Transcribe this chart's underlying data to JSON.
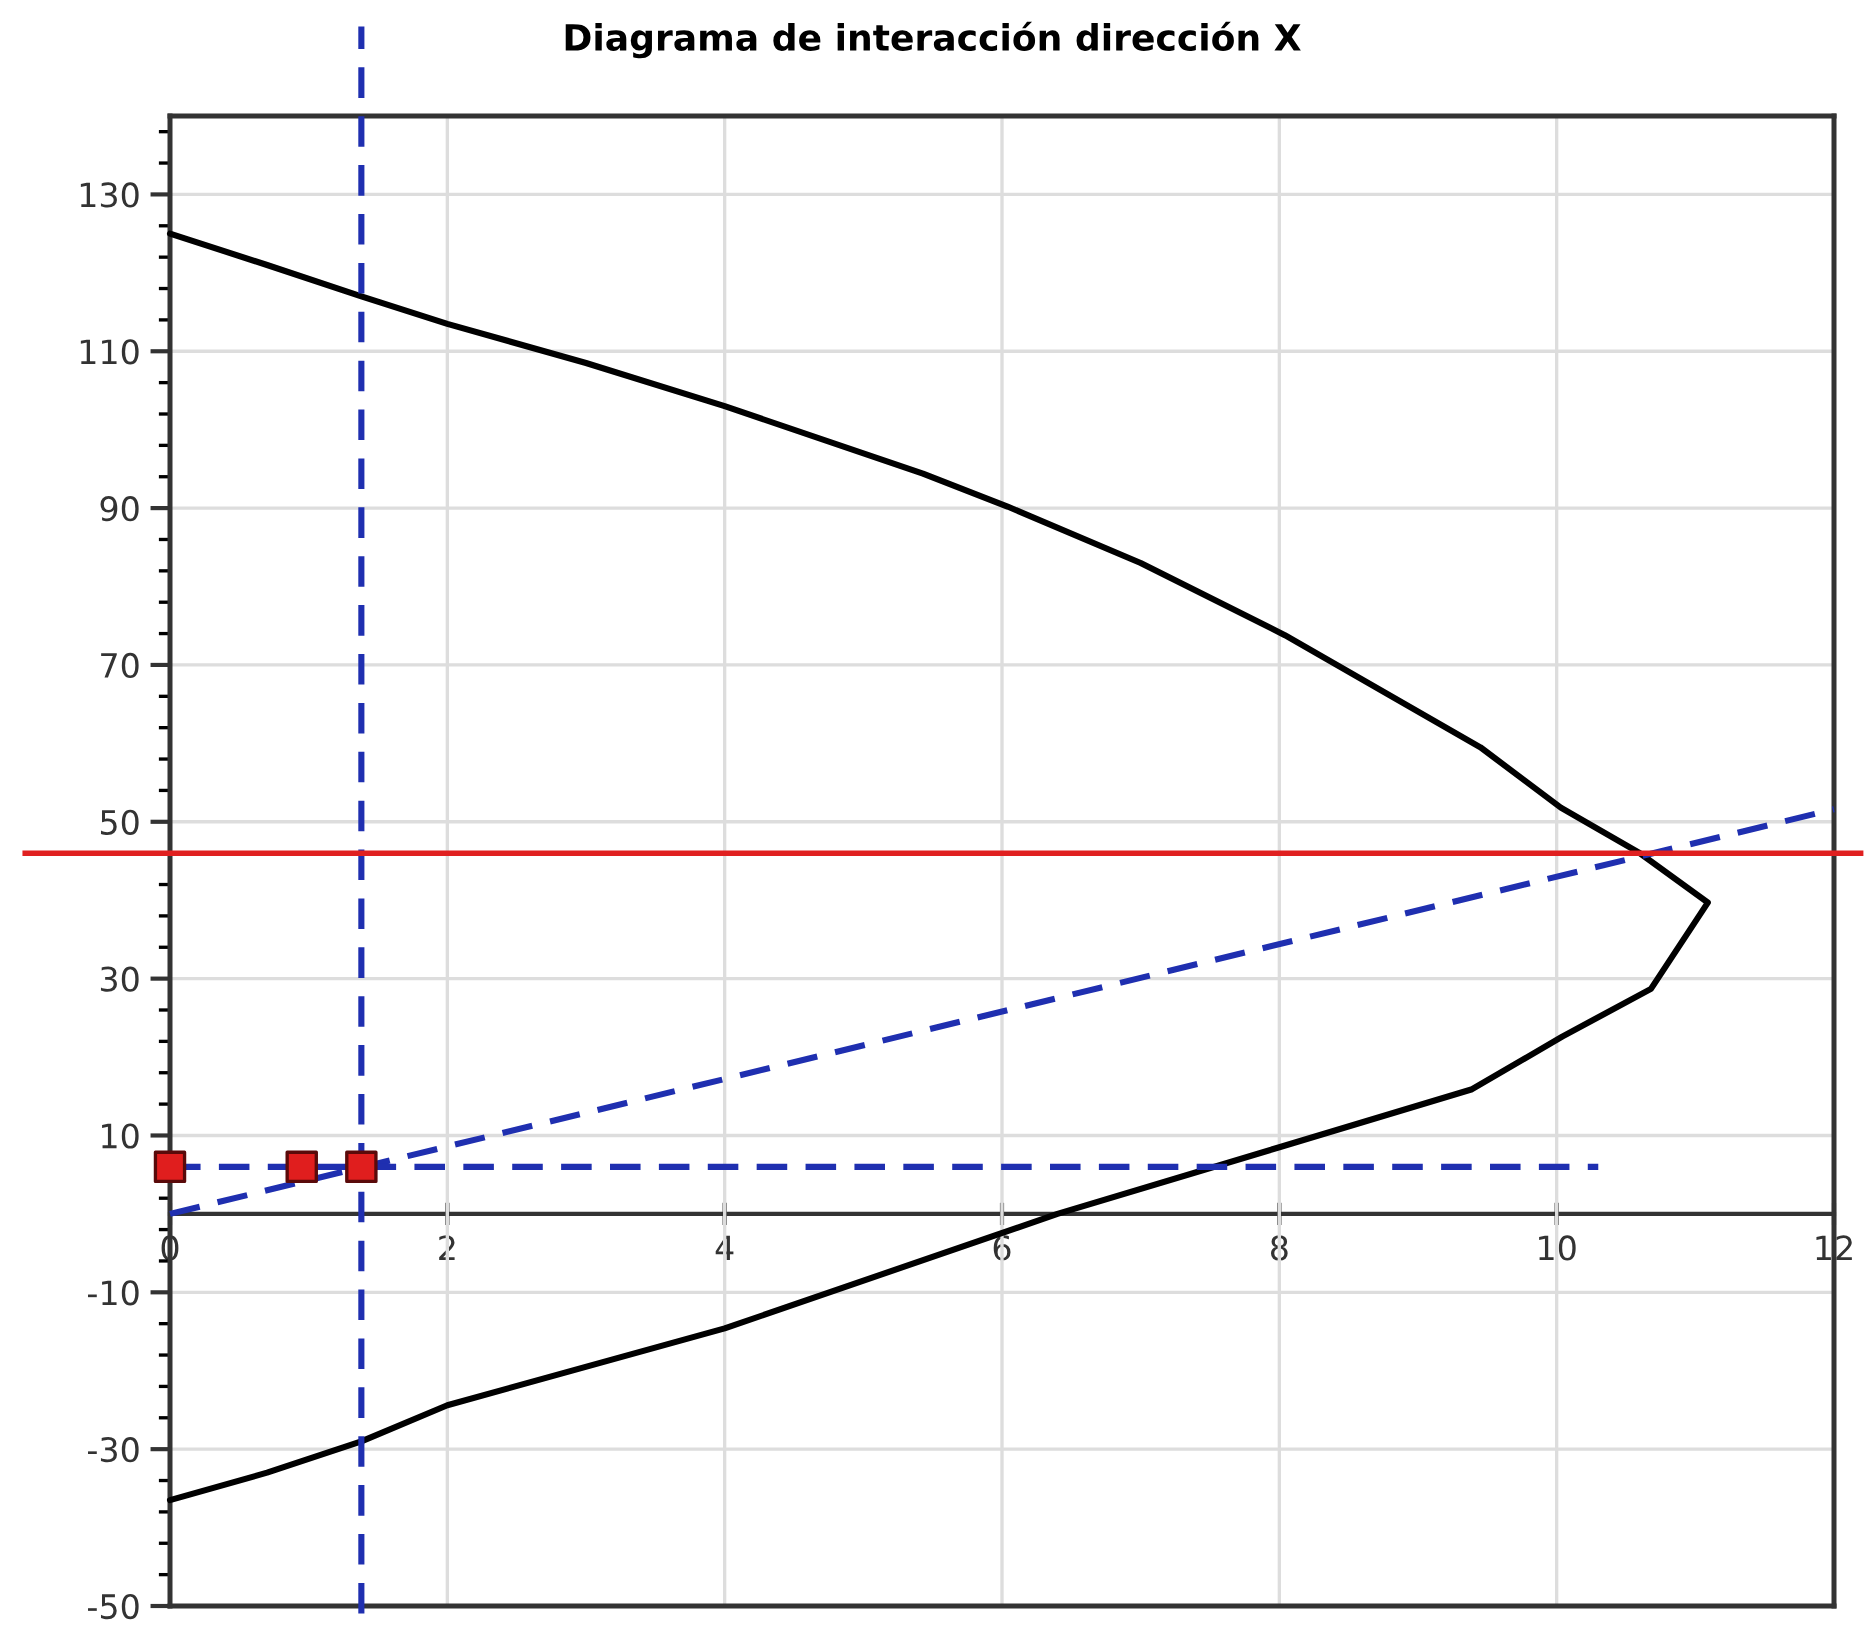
{
  "chart_data": {
    "type": "line",
    "title": "Diagrama de interacción dirección X",
    "xlim": [
      0,
      12
    ],
    "xticks": [
      0,
      2,
      4,
      6,
      8,
      10,
      12
    ],
    "ylim": [
      -50,
      140
    ],
    "yticks": [
      -50,
      -30,
      -10,
      10,
      30,
      50,
      70,
      90,
      110,
      130
    ],
    "grid": true,
    "legend": false,
    "series": [
      {
        "color": "#000000",
        "line_style": "solid",
        "marker": "none",
        "x": [
          0,
          0.7,
          1.38,
          2,
          3,
          4,
          5.43,
          6.04,
          7,
          8.04,
          9.45,
          10.03,
          10.6,
          11.09,
          10.68,
          10.04,
          9.39,
          8,
          6.4,
          4,
          2,
          1.38,
          0.7,
          0
        ],
        "values": [
          125,
          121,
          117,
          113.5,
          108.5,
          103,
          94.4,
          90.2,
          83,
          73.8,
          59.5,
          51.8,
          46,
          39.7,
          28.7,
          22.6,
          15.9,
          8.5,
          0,
          -14.6,
          -24.4,
          -29,
          -33,
          -36.5
        ]
      },
      {
        "color": "#1f2fb0",
        "line_style": "dashed",
        "marker": "none",
        "x": [
          0,
          12
        ],
        "values": [
          0,
          51.6
        ]
      },
      {
        "color": "#1f2fb0",
        "line_style": "dashed",
        "marker": "none",
        "x": [
          0,
          10.3
        ],
        "values": [
          6,
          6
        ]
      },
      {
        "type": "scatter",
        "color": "#e01e1e",
        "marker": "square",
        "x": [
          0,
          0.95,
          1.38
        ],
        "values": [
          6,
          6,
          6
        ]
      }
    ],
    "ref_lines": [
      {
        "axis": "x",
        "value": 1.38,
        "color": "#1f2fb0",
        "line_style": "dashed"
      },
      {
        "axis": "y",
        "value": 46,
        "color": "#e02020",
        "line_style": "solid"
      }
    ]
  }
}
